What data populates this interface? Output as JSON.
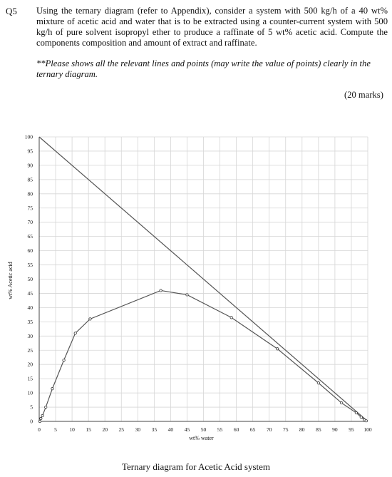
{
  "question": {
    "number": "Q5",
    "text": "Using the ternary diagram (refer to Appendix), consider a system with 500 kg/h of a 40 wt% mixture of acetic acid and water that is to be extracted using a counter-current system with 500 kg/h of pure solvent isopropyl ether to produce a raffinate of 5 wt% acetic acid. Compute the components composition and amount of extract and raffinate.",
    "note": "**Please shows all the relevant lines and points (may write the value of points) clearly in the ternary diagram.",
    "marks": "(20 marks)"
  },
  "caption": "Ternary diagram for Acetic Acid system",
  "chart_data": {
    "type": "line",
    "xlabel": "wt% water",
    "ylabel": "wt% Acetic acid",
    "xlim": [
      0,
      100
    ],
    "ylim": [
      0,
      100
    ],
    "x_ticks": [
      0,
      5,
      10,
      15,
      20,
      25,
      30,
      35,
      40,
      45,
      50,
      55,
      60,
      65,
      70,
      75,
      80,
      85,
      90,
      95,
      100
    ],
    "y_ticks": [
      0,
      5,
      10,
      15,
      20,
      25,
      30,
      35,
      40,
      45,
      50,
      55,
      60,
      65,
      70,
      75,
      80,
      85,
      90,
      95,
      100
    ],
    "grid": true,
    "legend": "none",
    "series": [
      {
        "values_x": [
          0,
          100
        ],
        "values_y": [
          100,
          0
        ]
      },
      {
        "values_x": [
          0.2,
          0.5,
          1.0,
          2.0,
          4.0,
          7.5,
          11.0,
          15.5,
          37.0,
          45.0,
          58.5,
          72.5,
          85.0,
          92.0,
          96.5,
          98.0,
          99.0,
          99.5
        ],
        "values_y": [
          0.0,
          1.0,
          2.0,
          5.0,
          11.5,
          21.5,
          31.0,
          36.0,
          46.0,
          44.5,
          36.5,
          25.5,
          13.5,
          6.5,
          3.0,
          1.5,
          0.5,
          0.2
        ]
      }
    ]
  }
}
